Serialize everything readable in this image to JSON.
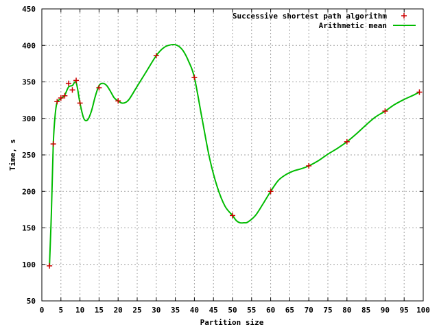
{
  "chart_data": {
    "type": "line",
    "xlabel": "Partition size",
    "ylabel": "Time, s",
    "xlim": [
      0,
      100
    ],
    "ylim": [
      50,
      450
    ],
    "xticks": [
      0,
      5,
      10,
      15,
      20,
      25,
      30,
      35,
      40,
      45,
      50,
      55,
      60,
      65,
      70,
      75,
      80,
      85,
      90,
      95,
      100
    ],
    "yticks": [
      50,
      100,
      150,
      200,
      250,
      300,
      350,
      400,
      450
    ],
    "grid": true,
    "legend_position": "top-right",
    "series": [
      {
        "name": "Successive shortest path algorithm",
        "style": "points",
        "marker": "plus",
        "color": "#cc0000",
        "x": [
          2,
          3,
          4,
          5,
          6,
          7,
          8,
          9,
          10,
          15,
          20,
          30,
          40,
          50,
          60,
          70,
          80,
          90,
          99
        ],
        "y": [
          98,
          265,
          323,
          328,
          331,
          348,
          339,
          352,
          321,
          342,
          324,
          386,
          356,
          167,
          200,
          235,
          268,
          310,
          336
        ]
      },
      {
        "name": "Arithmetic mean",
        "style": "line",
        "color": "#00bb00",
        "x": [
          2,
          2.5,
          3,
          3.5,
          4,
          5,
          6,
          7,
          8,
          9,
          10,
          11,
          12,
          13,
          14,
          15,
          16,
          17,
          18,
          19,
          20,
          21,
          22,
          23,
          25,
          27.5,
          30,
          32,
          34,
          35.5,
          37,
          38.5,
          40,
          42,
          44,
          46,
          48,
          50,
          51,
          52,
          53,
          54,
          56,
          58,
          60,
          62,
          64,
          66,
          68,
          70,
          72.5,
          75,
          77.5,
          80,
          82.5,
          85,
          87.5,
          90,
          92.5,
          95,
          97.5,
          99
        ],
        "y": [
          98,
          170,
          265,
          305,
          322,
          327,
          332,
          343,
          345,
          349,
          321,
          300,
          298,
          310,
          330,
          345,
          348,
          345,
          337,
          328,
          324,
          321,
          322,
          327,
          344,
          365,
          386,
          397,
          401,
          400,
          393,
          378,
          356,
          300,
          245,
          206,
          180,
          167,
          160,
          157,
          157,
          158,
          167,
          183,
          200,
          215,
          223,
          228,
          231,
          235,
          242,
          251,
          259,
          268,
          279,
          291,
          302,
          310,
          319,
          326,
          332,
          336
        ]
      }
    ]
  }
}
